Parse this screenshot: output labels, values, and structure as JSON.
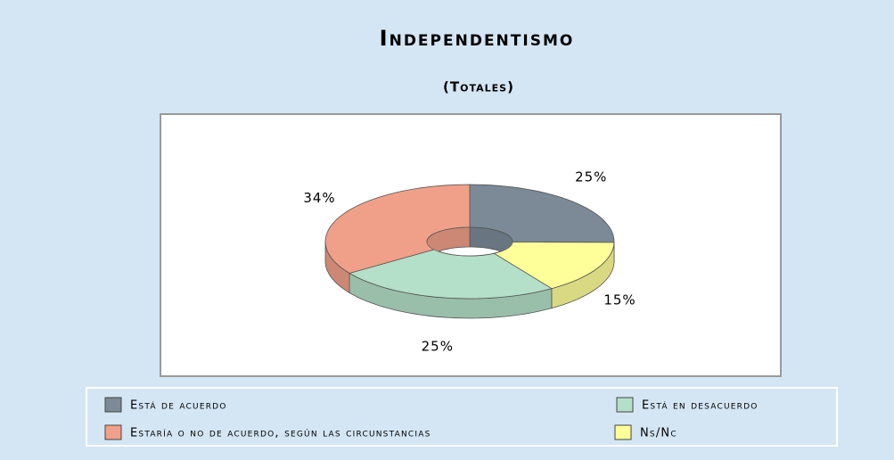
{
  "chart_data": {
    "type": "pie",
    "title": "Independentismo",
    "subtitle": "(Totales)",
    "series": [
      {
        "name": "Está de acuerdo",
        "color": "#7b8a96",
        "values": [
          25
        ],
        "value_labels": [
          "25%"
        ]
      },
      {
        "name": "Ns/Nc",
        "color": "#ffff99",
        "values": [
          15
        ],
        "value_labels": [
          "15%"
        ]
      },
      {
        "name": "Está en desacuerdo",
        "color": "#b4dfc8",
        "values": [
          25
        ],
        "value_labels": [
          "25%"
        ]
      },
      {
        "name": "Estaría o no de acuerdo, según las circunstancias",
        "color": "#f0a088",
        "values": [
          34
        ],
        "value_labels": [
          "34%"
        ]
      }
    ]
  }
}
